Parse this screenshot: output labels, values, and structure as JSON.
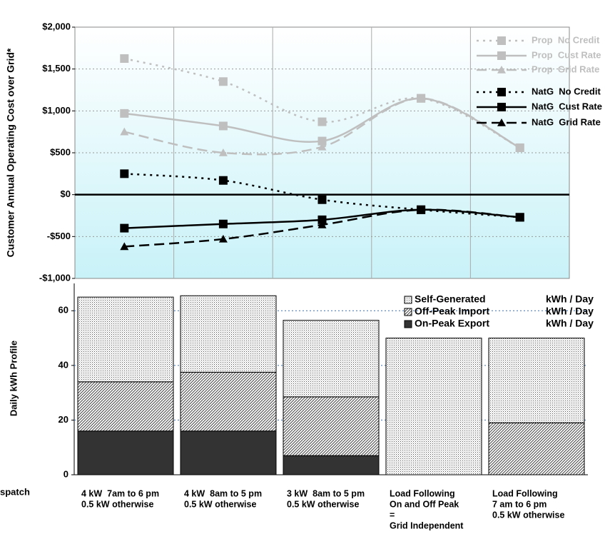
{
  "chart_data": [
    {
      "type": "line",
      "y_label": "Customer Annual Operating Cost over Grid*",
      "ylim": [
        -1000,
        2000
      ],
      "yticks": [
        {
          "value": -1000,
          "label": "-$1,000"
        },
        {
          "value": -500,
          "label": "-$500"
        },
        {
          "value": 0,
          "label": "$0"
        },
        {
          "value": 500,
          "label": "$500"
        },
        {
          "value": 1000,
          "label": "$1,000"
        },
        {
          "value": 1500,
          "label": "$1,500"
        },
        {
          "value": 2000,
          "label": "$2,000"
        }
      ],
      "grid": true,
      "legend": "upper right",
      "series": [
        {
          "name": "Prop  No Credit",
          "color": "#bfbfbf",
          "dash": "dotted",
          "marker": "square",
          "values": [
            1625,
            1350,
            870,
            1150,
            560
          ]
        },
        {
          "name": "Prop  Cust Rate",
          "color": "#bfbfbf",
          "dash": "solid",
          "marker": "square",
          "values": [
            970,
            820,
            640,
            1150,
            560
          ]
        },
        {
          "name": "Prop  Grid Rate",
          "color": "#bfbfbf",
          "dash": "dashed",
          "marker": "triangle",
          "values": [
            750,
            500,
            570,
            1150,
            560
          ]
        },
        {
          "name": "NatG  No Credit",
          "color": "#000000",
          "dash": "dotted",
          "marker": "square",
          "values": [
            250,
            170,
            -60,
            -180,
            -270
          ]
        },
        {
          "name": "NatG  Cust Rate",
          "color": "#000000",
          "dash": "solid",
          "marker": "square",
          "values": [
            -400,
            -350,
            -300,
            -180,
            -270
          ]
        },
        {
          "name": "NatG  Grid Rate",
          "color": "#000000",
          "dash": "dashed",
          "marker": "triangle",
          "values": [
            -620,
            -530,
            -360,
            -180,
            -270
          ]
        }
      ]
    },
    {
      "type": "stacked_bar",
      "y_label": "Daily kWh Profile",
      "x_label": "spatch",
      "categories": [
        [
          "4 kW  7am to 6 pm",
          "0.5 kW otherwise"
        ],
        [
          "4 kW  8am to 5 pm",
          "0.5 kW otherwise"
        ],
        [
          "3 kW  8am to 5 pm",
          "0.5 kW otherwise"
        ],
        [
          "Load Following",
          "On and Off Peak",
          "=",
          "Grid Independent"
        ],
        [
          "Load Following",
          "7 am to 6 pm",
          "0.5 kW otherwise"
        ]
      ],
      "ylim": [
        0,
        70
      ],
      "yticks": [
        0,
        20,
        40,
        60
      ],
      "grid": true,
      "legend": "upper right",
      "series": [
        {
          "name": "On-Peak Export",
          "unit": "kWh / Day",
          "color": "#333333",
          "values": [
            16,
            16,
            7,
            0,
            0
          ]
        },
        {
          "name": "Off-Peak Import",
          "unit": "kWh / Day",
          "color": "url(#hatch)",
          "values": [
            18,
            21.5,
            21.5,
            0,
            19
          ]
        },
        {
          "name": "Self-Generated",
          "unit": "kWh / Day",
          "color": "url(#dots)",
          "values": [
            31,
            28,
            28,
            50,
            31
          ]
        }
      ]
    }
  ]
}
